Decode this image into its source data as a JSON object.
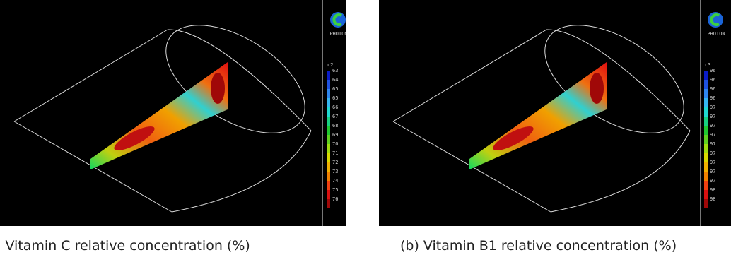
{
  "panels": [
    {
      "caption": ") Vitamin C relative concentration (%)",
      "logo_text": "PHOTON",
      "variable": "c2",
      "legend_ticks": [
        "63",
        "64",
        "65",
        "65",
        "66",
        "67",
        "68",
        "69",
        "70",
        "71",
        "72",
        "73",
        "74",
        "75",
        "76"
      ]
    },
    {
      "caption": "(b) Vitamin B1 relative concentration (%)",
      "logo_text": "PHOTON",
      "variable": "c3",
      "legend_ticks": [
        "96",
        "96",
        "96",
        "96",
        "97",
        "97",
        "97",
        "97",
        "97",
        "97",
        "97",
        "97",
        "97",
        "98",
        "98"
      ]
    }
  ],
  "legend_colors": [
    "#0a1cc8",
    "#1f52e0",
    "#2f86ee",
    "#36b6f0",
    "#20d8d0",
    "#18d080",
    "#20c830",
    "#60d020",
    "#a0dc10",
    "#d8d800",
    "#f0b000",
    "#f08000",
    "#f04010",
    "#d81010",
    "#a00808"
  ],
  "logo_icon": "photon-logo-icon"
}
